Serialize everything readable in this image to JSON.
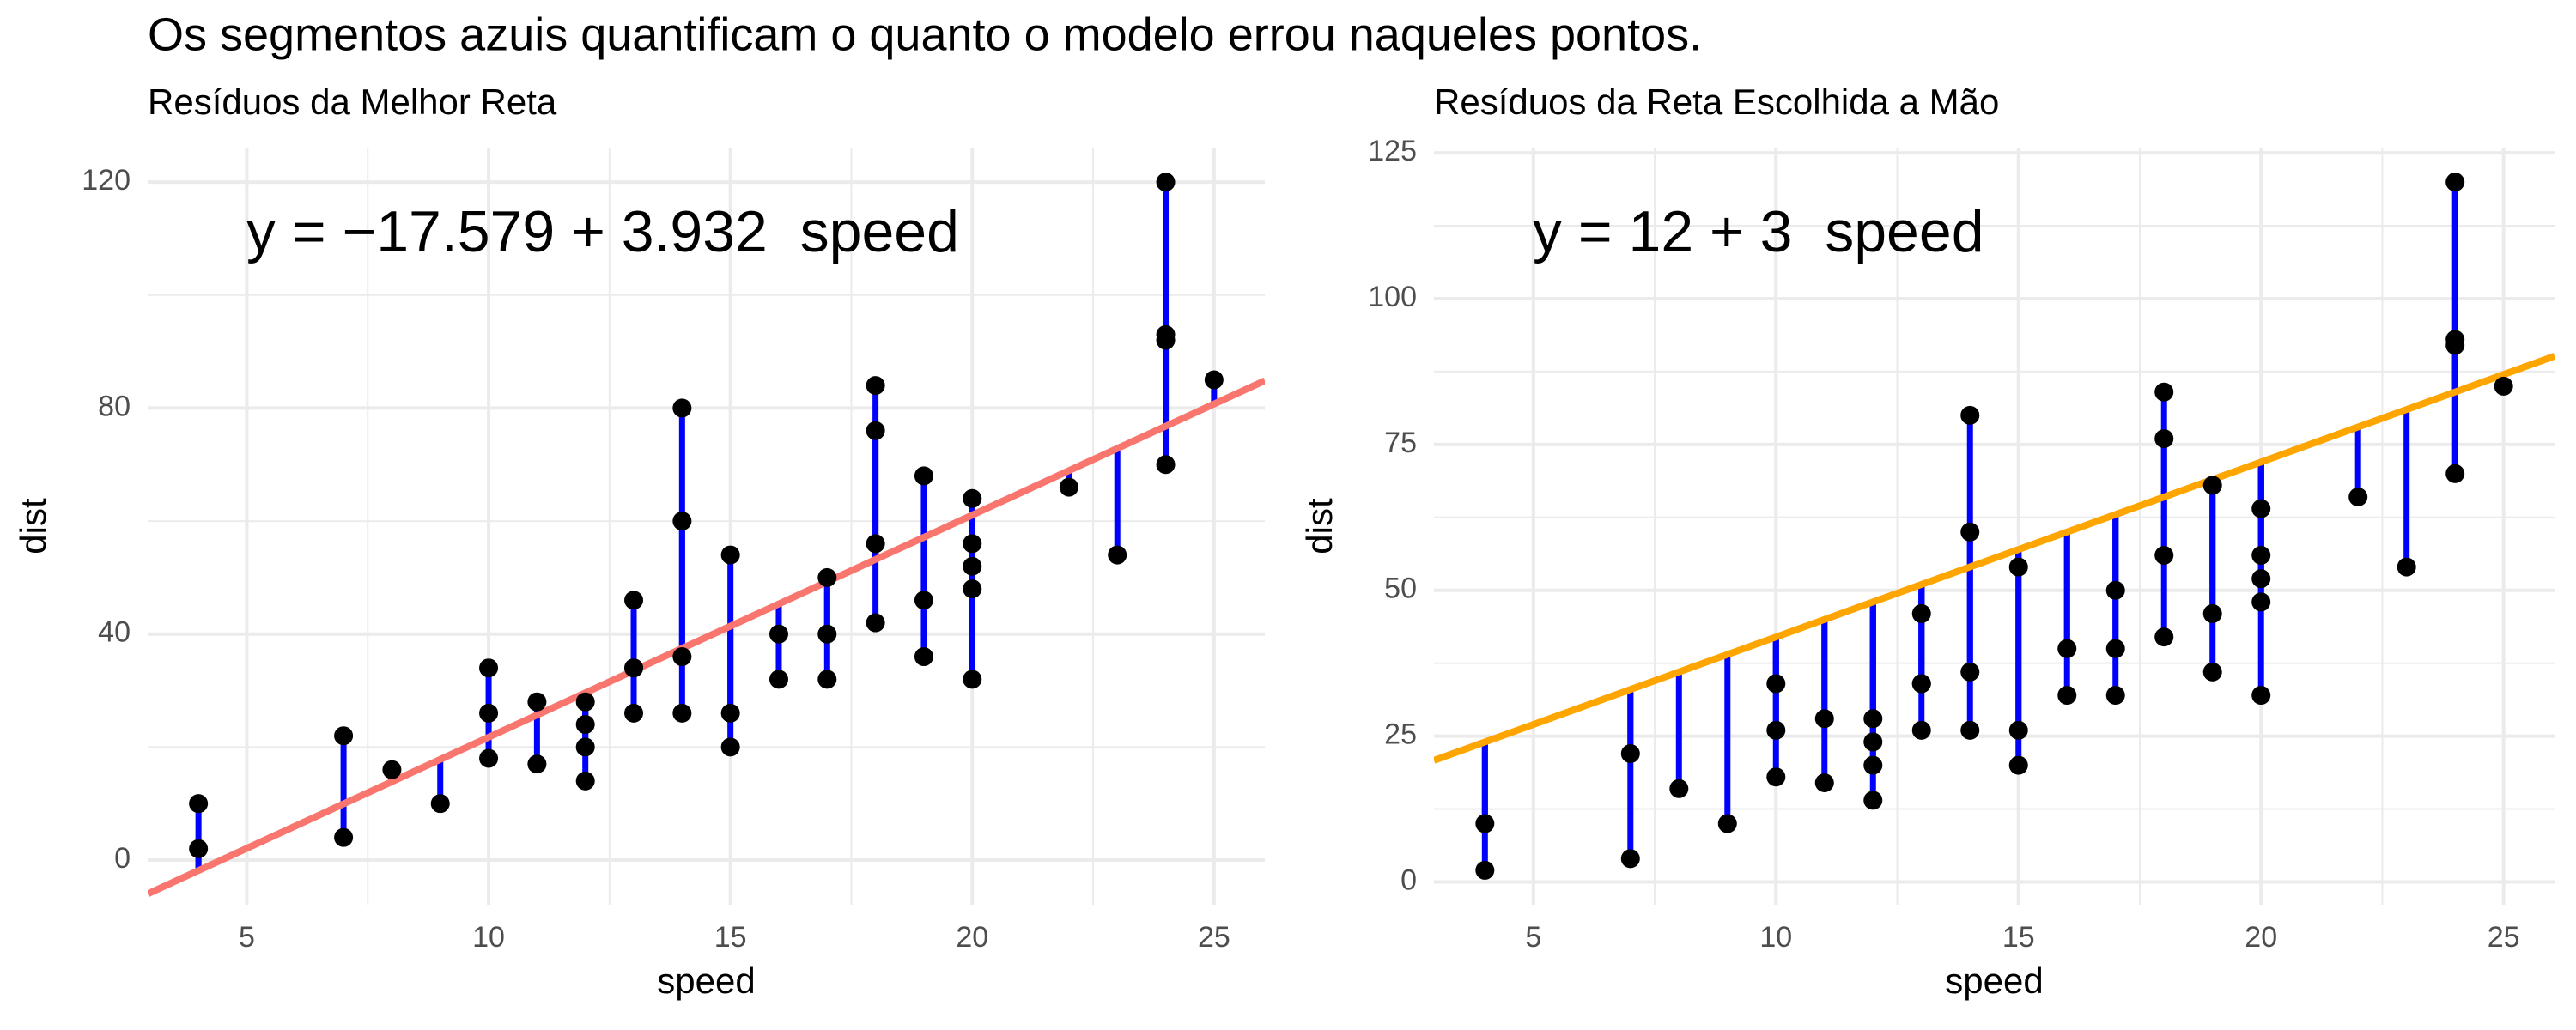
{
  "title": "Os segmentos azuis quantificam o quanto o modelo errou naqueles pontos.",
  "chart_data": [
    {
      "type": "scatter",
      "subtitle": "Resíduos da Melhor Reta",
      "annotation": "y = −17.579 + 3.932  speed",
      "x_label": "speed",
      "y_label": "dist",
      "intercept": -17.579,
      "slope": 3.932,
      "line_color": "#f8766d",
      "segment_color": "#0000ff",
      "point_color": "#000000",
      "xlim": [
        2.95,
        26.05
      ],
      "ylim": [
        -7.9,
        126.1
      ],
      "xticks": [
        5,
        10,
        15,
        20,
        25
      ],
      "yticks": [
        0,
        40,
        80,
        120
      ],
      "xminor": [
        7.5,
        12.5,
        17.5,
        22.5
      ],
      "yminor": [
        20,
        60,
        100
      ],
      "x": [
        4,
        4,
        7,
        7,
        8,
        9,
        10,
        10,
        10,
        11,
        11,
        12,
        12,
        12,
        12,
        13,
        13,
        13,
        13,
        14,
        14,
        14,
        14,
        15,
        15,
        15,
        16,
        16,
        17,
        17,
        17,
        18,
        18,
        18,
        18,
        19,
        19,
        19,
        20,
        20,
        20,
        20,
        20,
        22,
        23,
        24,
        24,
        24,
        24,
        25
      ],
      "y": [
        2,
        10,
        4,
        22,
        16,
        10,
        18,
        26,
        34,
        17,
        28,
        14,
        20,
        24,
        28,
        26,
        34,
        34,
        46,
        26,
        36,
        60,
        80,
        20,
        26,
        54,
        32,
        40,
        32,
        40,
        50,
        42,
        56,
        76,
        84,
        36,
        46,
        68,
        32,
        48,
        52,
        56,
        64,
        66,
        54,
        70,
        92,
        93,
        120,
        85
      ]
    },
    {
      "type": "scatter",
      "subtitle": "Resíduos da Reta Escolhida a Mão",
      "annotation": "y = 12 + 3  speed",
      "x_label": "speed",
      "y_label": "dist",
      "intercept": 12,
      "slope": 3,
      "line_color": "#ffa500",
      "segment_color": "#0000ff",
      "point_color": "#000000",
      "xlim": [
        2.95,
        26.05
      ],
      "ylim": [
        -3.9,
        125.9
      ],
      "xticks": [
        5,
        10,
        15,
        20,
        25
      ],
      "yticks": [
        0,
        25,
        50,
        75,
        100,
        125
      ],
      "xminor": [
        7.5,
        12.5,
        17.5,
        22.5
      ],
      "yminor": [
        12.5,
        37.5,
        62.5,
        87.5,
        112.5
      ],
      "x": [
        4,
        4,
        7,
        7,
        8,
        9,
        10,
        10,
        10,
        11,
        11,
        12,
        12,
        12,
        12,
        13,
        13,
        13,
        13,
        14,
        14,
        14,
        14,
        15,
        15,
        15,
        16,
        16,
        17,
        17,
        17,
        18,
        18,
        18,
        18,
        19,
        19,
        19,
        20,
        20,
        20,
        20,
        20,
        22,
        23,
        24,
        24,
        24,
        24,
        25
      ],
      "y": [
        2,
        10,
        4,
        22,
        16,
        10,
        18,
        26,
        34,
        17,
        28,
        14,
        20,
        24,
        28,
        26,
        34,
        34,
        46,
        26,
        36,
        60,
        80,
        20,
        26,
        54,
        32,
        40,
        32,
        40,
        50,
        42,
        56,
        76,
        84,
        36,
        46,
        68,
        32,
        48,
        52,
        56,
        64,
        66,
        54,
        70,
        92,
        93,
        120,
        85
      ]
    }
  ]
}
